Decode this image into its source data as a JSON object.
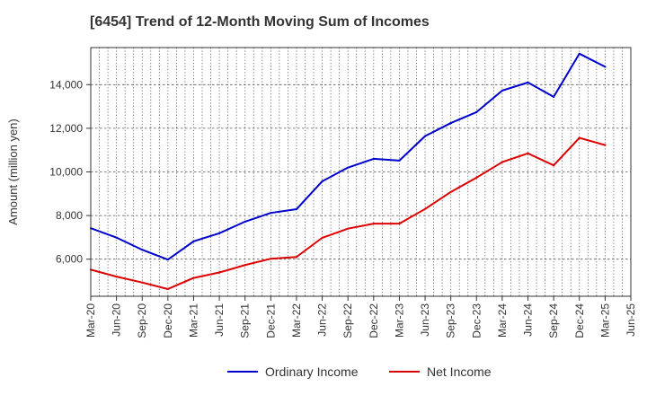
{
  "chart_data": {
    "type": "line",
    "title": "[6454]  Trend of 12-Month Moving Sum of Incomes",
    "xlabel": "",
    "ylabel": "Amount (million yen)",
    "ylim": [
      4300,
      15700
    ],
    "yticks": [
      6000,
      8000,
      10000,
      12000,
      14000
    ],
    "ytick_labels": [
      "6,000",
      "8,000",
      "10,000",
      "12,000",
      "14,000"
    ],
    "x_tick_labels": [
      "Mar-20",
      "Jun-20",
      "Sep-20",
      "Dec-20",
      "Mar-21",
      "Jun-21",
      "Sep-21",
      "Dec-21",
      "Mar-22",
      "Jun-22",
      "Sep-22",
      "Dec-22",
      "Mar-23",
      "Jun-23",
      "Sep-23",
      "Dec-23",
      "Mar-24",
      "Jun-24",
      "Sep-24",
      "Dec-24",
      "Mar-25",
      "Jun-25"
    ],
    "categories": [
      "Mar-20",
      "Jun-20",
      "Sep-20",
      "Dec-20",
      "Mar-21",
      "Jun-21",
      "Sep-21",
      "Dec-21",
      "Mar-22",
      "Jun-22",
      "Sep-22",
      "Dec-22",
      "Mar-23",
      "Jun-23",
      "Sep-23",
      "Dec-23",
      "Mar-24",
      "Jun-24",
      "Sep-24",
      "Dec-24",
      "Mar-25"
    ],
    "grid": true,
    "legend_position": "bottom",
    "series": [
      {
        "name": "Ordinary Income",
        "color": "#0000cc",
        "values": [
          7420,
          6990,
          6430,
          5980,
          6820,
          7190,
          7720,
          8120,
          8290,
          9570,
          10200,
          10600,
          10520,
          11640,
          12240,
          12740,
          13730,
          14100,
          13440,
          15420,
          14820
        ]
      },
      {
        "name": "Net Income",
        "color": "#dd0000",
        "values": [
          5520,
          5200,
          4930,
          4630,
          5140,
          5390,
          5730,
          6020,
          6100,
          6980,
          7400,
          7630,
          7630,
          8300,
          9080,
          9740,
          10450,
          10850,
          10300,
          11560,
          11230
        ]
      }
    ]
  }
}
